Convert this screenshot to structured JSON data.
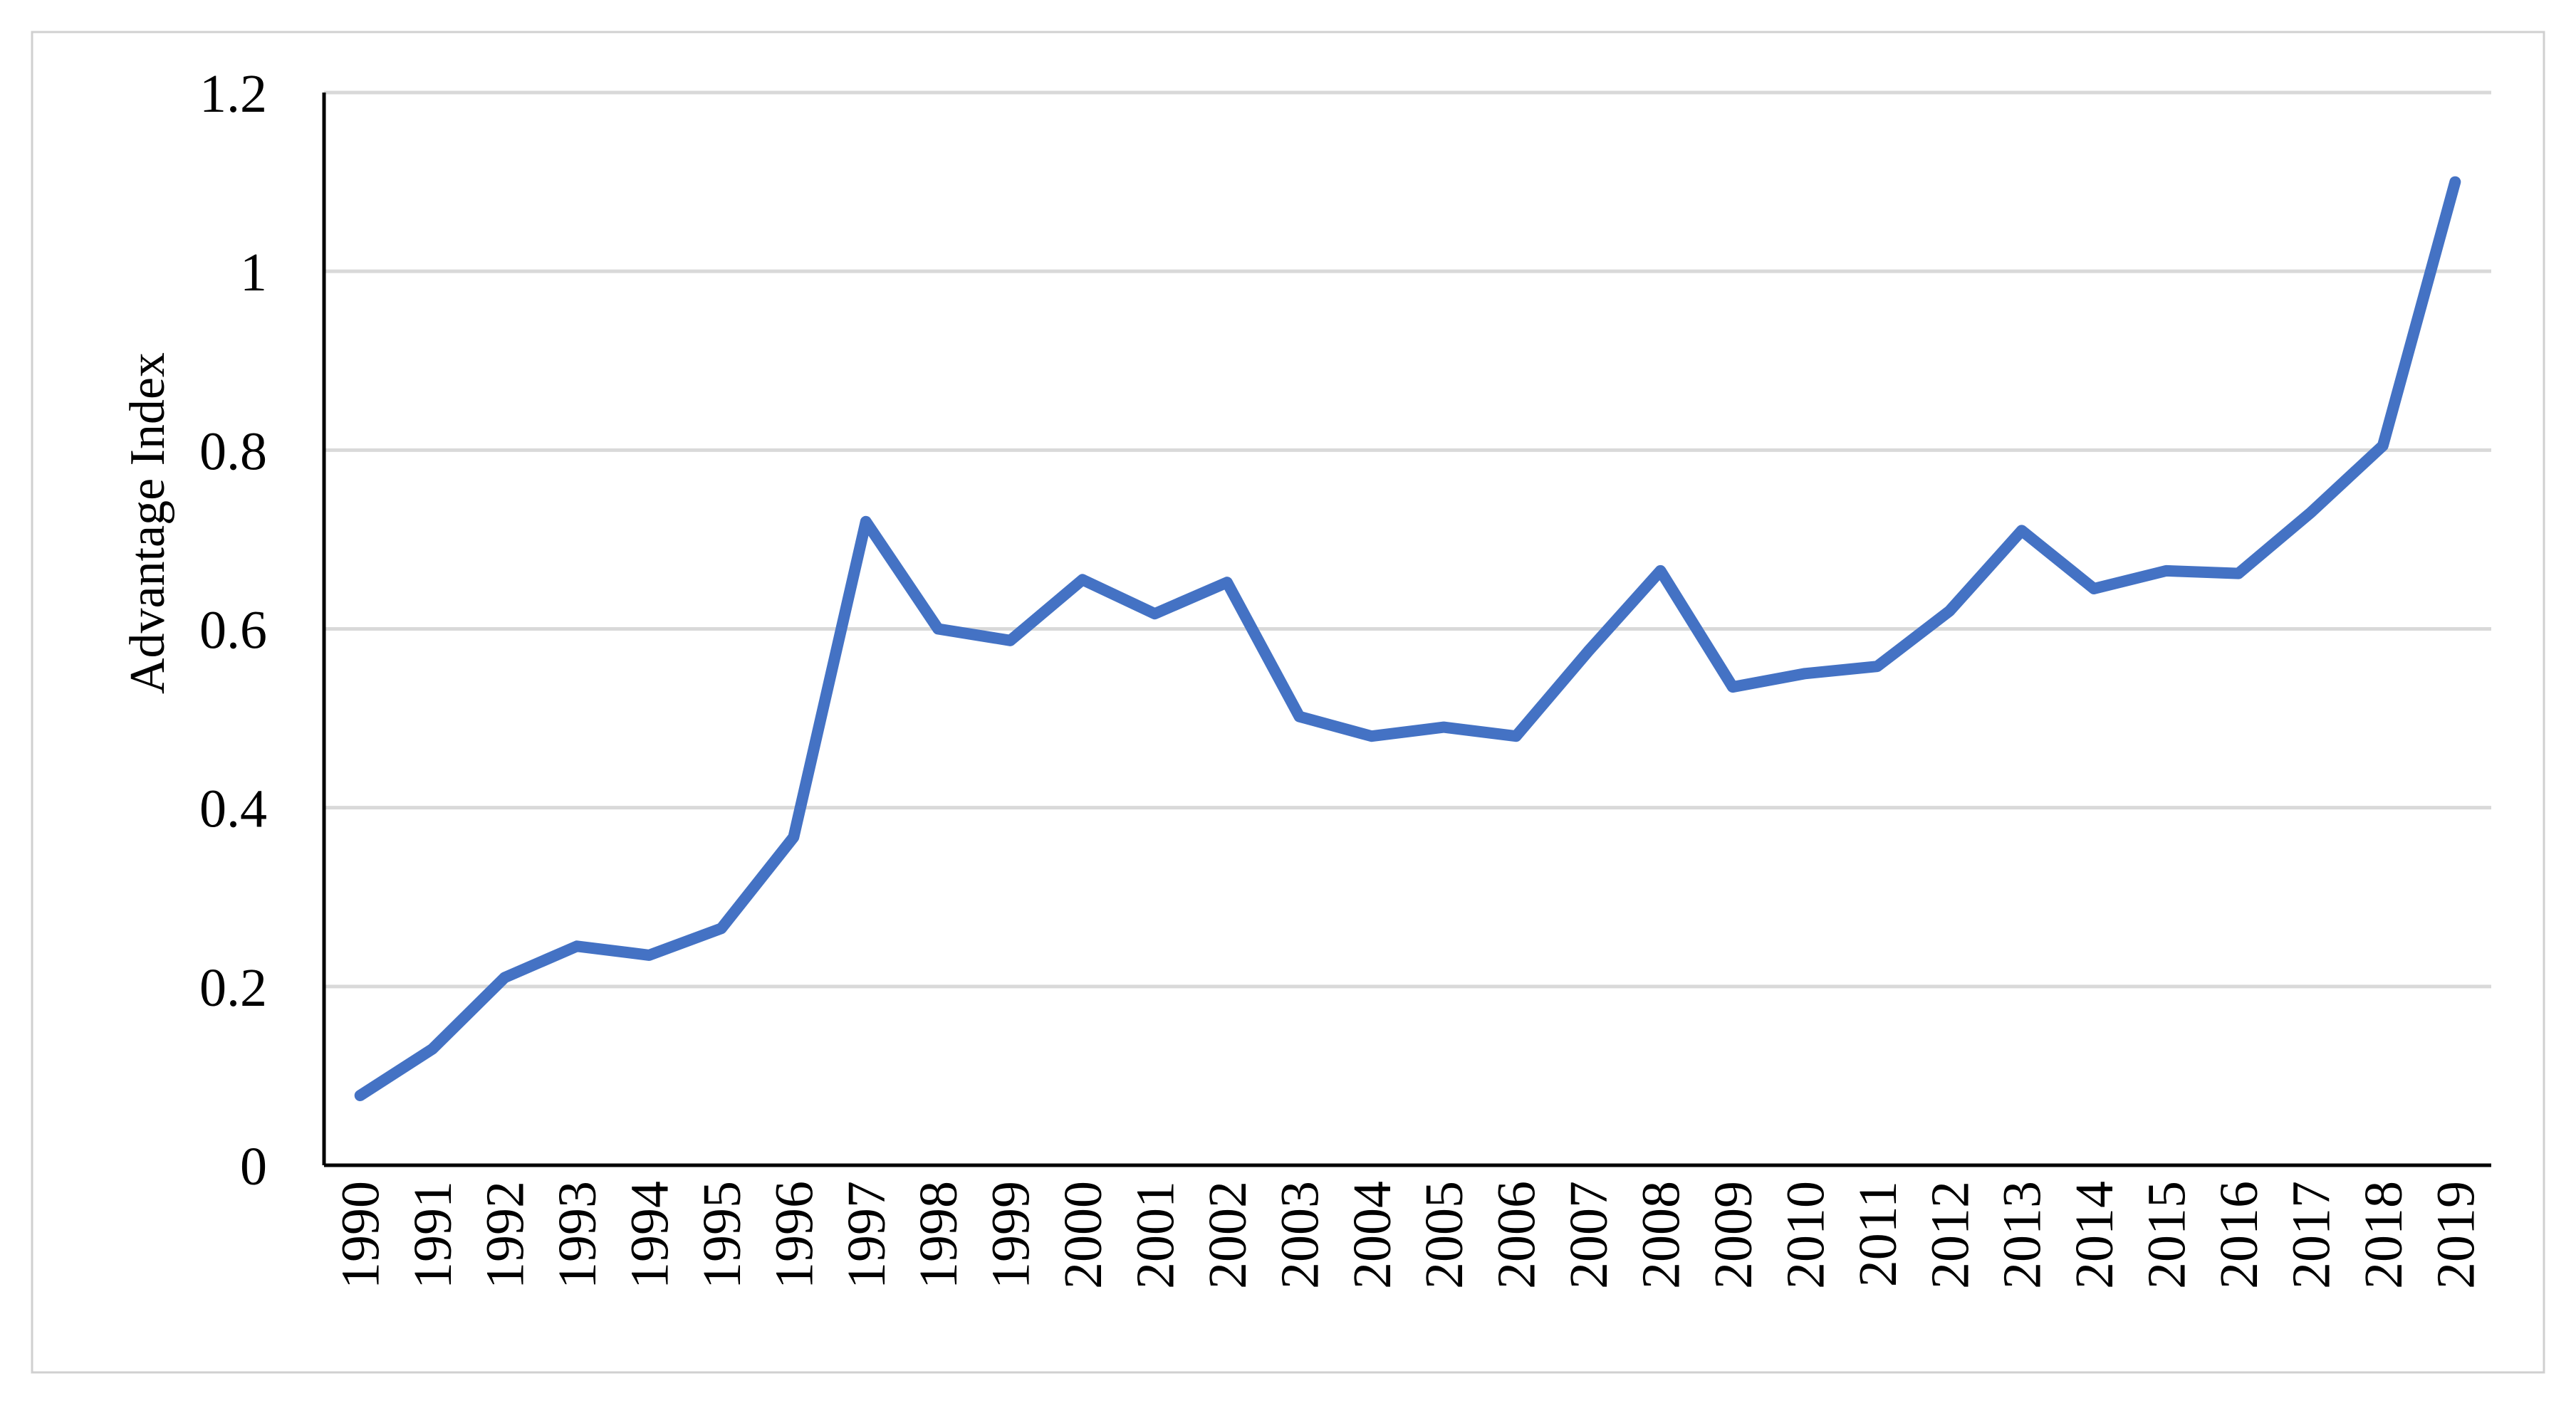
{
  "chart_data": {
    "type": "line",
    "title": "",
    "xlabel": "",
    "ylabel": "Advantage Index",
    "ylim": [
      0,
      1.2
    ],
    "yticks": [
      "0",
      "0.2",
      "0.4",
      "0.6",
      "0.8",
      "1",
      "1.2"
    ],
    "grid": true,
    "legend": "none",
    "categories": [
      "1990",
      "1991",
      "1992",
      "1993",
      "1994",
      "1995",
      "1996",
      "1997",
      "1998",
      "1999",
      "2000",
      "2001",
      "2002",
      "2003",
      "2004",
      "2005",
      "2006",
      "2007",
      "2008",
      "2009",
      "2010",
      "2011",
      "2012",
      "2013",
      "2014",
      "2015",
      "2016",
      "2017",
      "2018",
      "2019"
    ],
    "series": [
      {
        "values": [
          0.078,
          0.13,
          0.21,
          0.245,
          0.235,
          0.265,
          0.367,
          0.72,
          0.6,
          0.587,
          0.655,
          0.617,
          0.652,
          0.502,
          0.48,
          0.49,
          0.48,
          0.575,
          0.665,
          0.535,
          0.55,
          0.558,
          0.62,
          0.71,
          0.645,
          0.665,
          0.662,
          0.73,
          0.805,
          1.1
        ],
        "color": "#4472C4"
      }
    ]
  }
}
